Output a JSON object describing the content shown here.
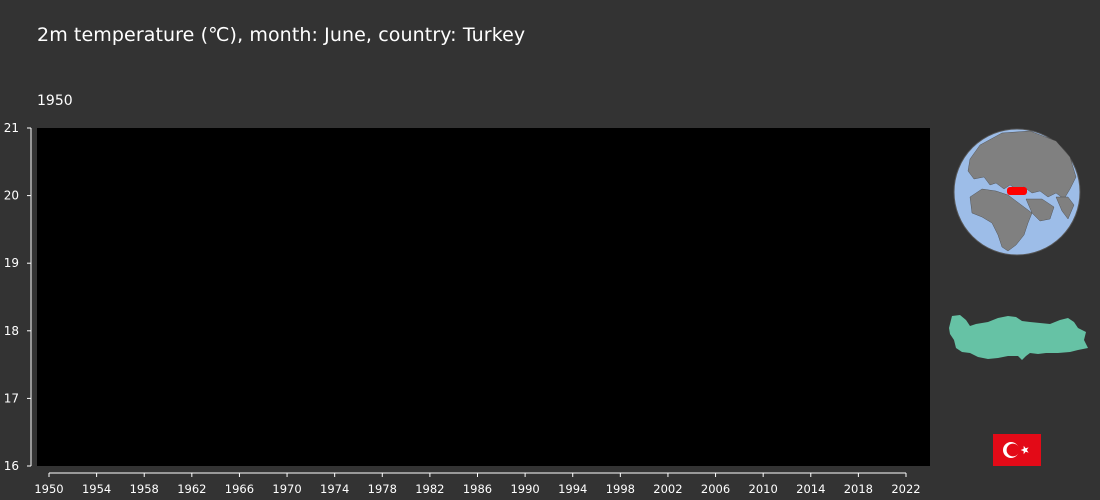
{
  "header": {
    "title": "2m temperature (℃), month: June, country: Turkey",
    "current_year": "1950"
  },
  "chart_data": {
    "type": "line",
    "title": "2m temperature (℃), month: June, country: Turkey",
    "xlabel": "",
    "ylabel": "",
    "xlim": [
      1950,
      2022
    ],
    "ylim": [
      16,
      21
    ],
    "x_ticks": [
      1950,
      1954,
      1958,
      1962,
      1966,
      1970,
      1974,
      1978,
      1982,
      1986,
      1990,
      1994,
      1998,
      2002,
      2006,
      2010,
      2014,
      2018,
      2022
    ],
    "y_ticks": [
      16,
      17,
      18,
      19,
      20,
      21
    ],
    "series": [],
    "plot_background": "#000000",
    "grid": false
  },
  "colors": {
    "page_background": "#333333",
    "plot_background": "#000000",
    "axis": "#ffffff",
    "globe_ocean": "#9dbde8",
    "globe_land": "#808080",
    "highlight": "#ff0000",
    "country_fill": "#66c2a5",
    "flag_red": "#e30a17",
    "flag_white": "#ffffff"
  },
  "decorations": {
    "globe": "globe-icon",
    "country_outline": "turkey-map-icon",
    "flag": "turkey-flag-icon"
  }
}
